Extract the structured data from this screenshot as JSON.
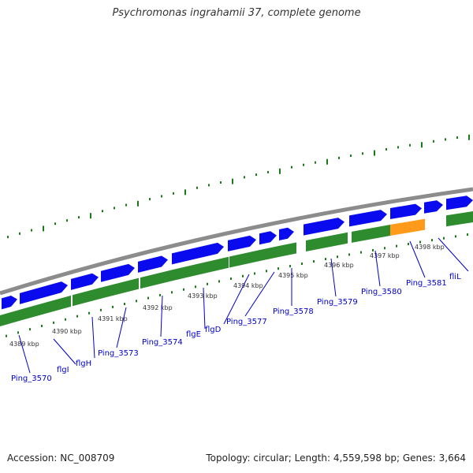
{
  "title": "Psychromonas ingrahamii 37, complete genome",
  "footer": {
    "accession": "Accession: NC_008709",
    "summary": "Topology: circular; Length: 4,559,598 bp; Genes: 3,664"
  },
  "colors": {
    "backbone": "#8c8c8c",
    "forward_gene": "#0a0aee",
    "cds": "#2e8b2e",
    "highlight": "#ff9a1a",
    "tick": "#1a7a1a",
    "label": "#0000cc"
  },
  "scale_labels": [
    "4389 kbp",
    "4390 kbp",
    "4391 kbp",
    "4392 kbp",
    "4393 kbp",
    "4394 kbp",
    "4395 kbp",
    "4396 kbp",
    "4397 kbp",
    "4398 kbp"
  ],
  "gene_labels": [
    "Ping_3570",
    "flgI",
    "flgH",
    "Ping_3573",
    "Ping_3574",
    "flgE",
    "flgD",
    "Ping_3577",
    "Ping_3578",
    "Ping_3579",
    "Ping_3580",
    "Ping_3581",
    "fliL"
  ]
}
